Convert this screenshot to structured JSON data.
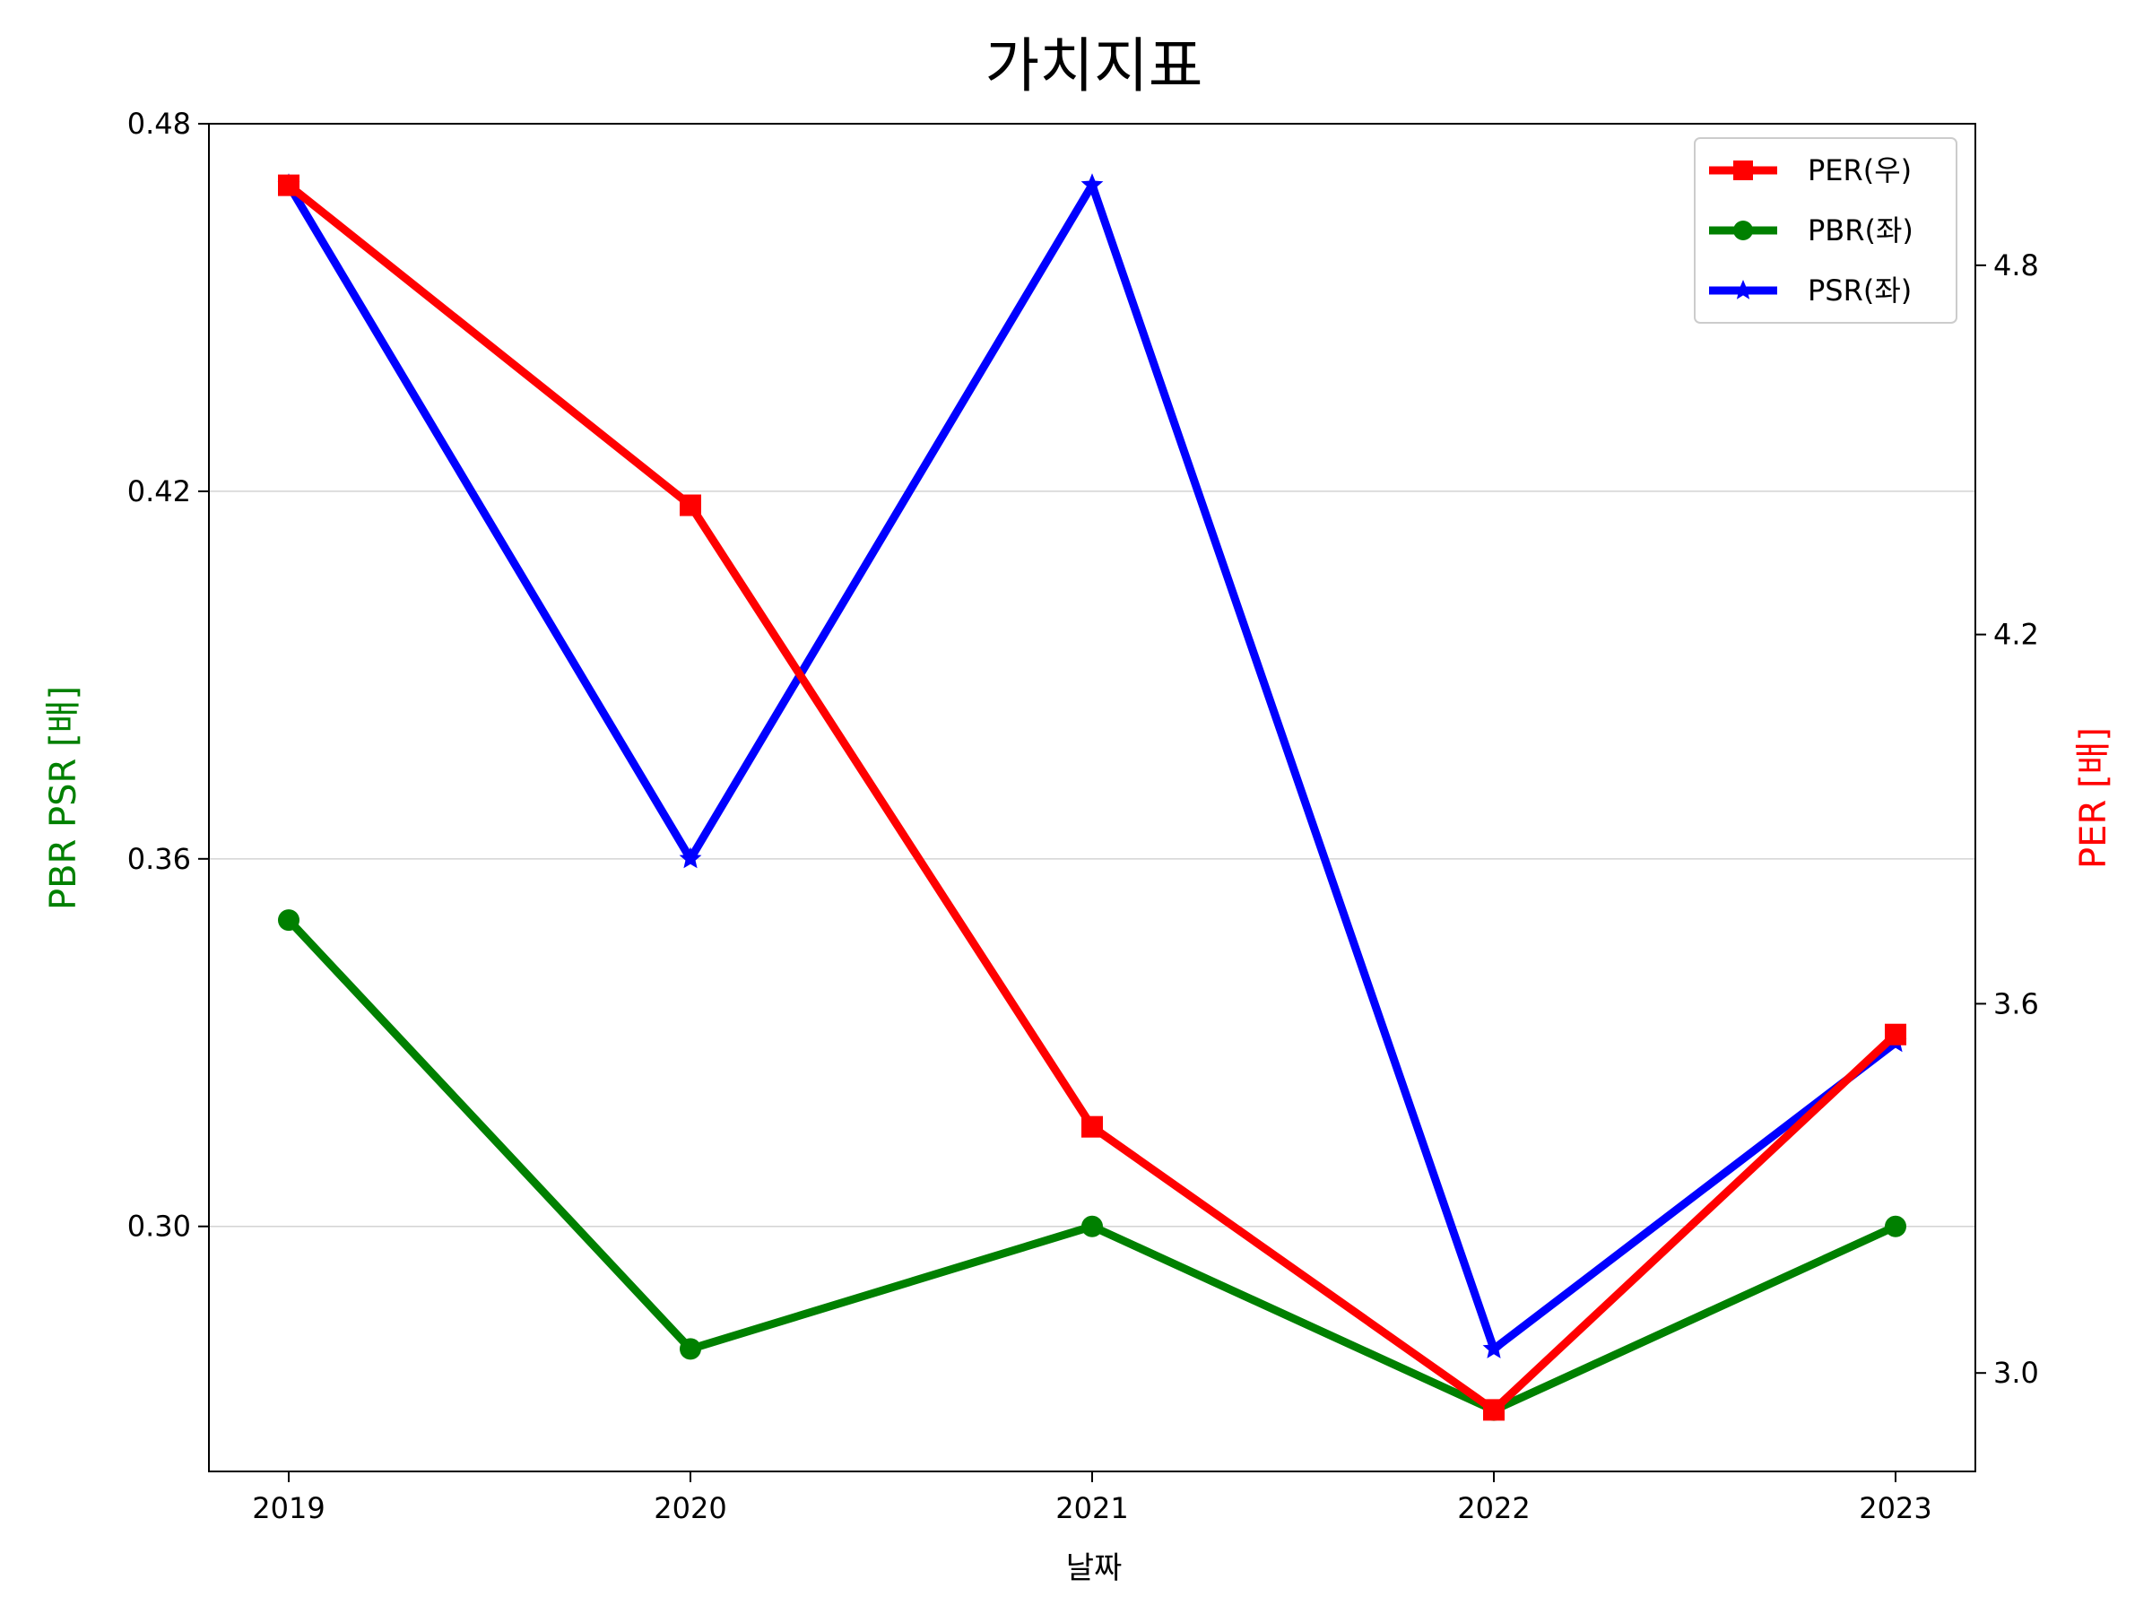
{
  "chart_data": {
    "type": "line",
    "title": "가치지표",
    "xlabel": "날짜",
    "ylabel_left": "PBR PSR [배]",
    "ylabel_right": "PER [배]",
    "categories": [
      "2019",
      "2020",
      "2021",
      "2022",
      "2023"
    ],
    "left_axis": {
      "ylim": [
        0.26,
        0.48
      ],
      "ticks": [
        0.3,
        0.36,
        0.42,
        0.48
      ],
      "tick_labels": [
        "0.30",
        "0.36",
        "0.42",
        "0.48"
      ],
      "color": "#008000"
    },
    "right_axis": {
      "ylim": [
        2.84,
        5.03
      ],
      "ticks": [
        3.0,
        3.6,
        4.2,
        4.8
      ],
      "tick_labels": [
        "3.0",
        "3.6",
        "4.2",
        "4.8"
      ],
      "color": "#ff0000"
    },
    "series": [
      {
        "name": "PER(우)",
        "axis": "right",
        "color": "#ff0000",
        "marker": "square",
        "values": [
          4.93,
          4.41,
          3.4,
          2.94,
          3.55
        ]
      },
      {
        "name": "PBR(좌)",
        "axis": "left",
        "color": "#008000",
        "marker": "circle",
        "values": [
          0.35,
          0.28,
          0.3,
          0.27,
          0.3
        ]
      },
      {
        "name": "PSR(좌)",
        "axis": "left",
        "color": "#0000ff",
        "marker": "star",
        "values": [
          0.47,
          0.36,
          0.47,
          0.28,
          0.33
        ]
      }
    ],
    "grid": "horizontal, left axis",
    "legend_position": "top-right"
  }
}
